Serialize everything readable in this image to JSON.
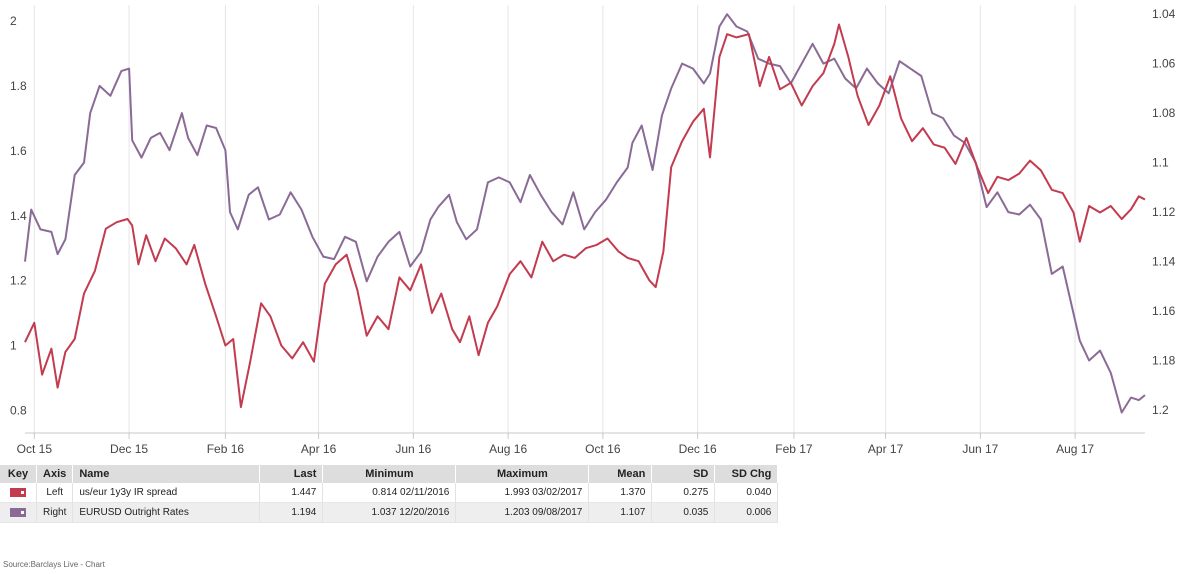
{
  "chart_data": {
    "type": "line",
    "x_tick_labels": [
      "Oct 15",
      "Dec 15",
      "Feb 16",
      "Apr 16",
      "Jun 16",
      "Aug 16",
      "Oct 16",
      "Dec 16",
      "Feb 17",
      "Apr 17",
      "Jun 17",
      "Aug 17"
    ],
    "x_range": [
      "2015-09-25",
      "2017-09-15"
    ],
    "left_axis": {
      "ticks": [
        "0.8",
        "1",
        "1.2",
        "1.4",
        "1.6",
        "1.8",
        "2"
      ],
      "range": [
        0.73,
        2.05
      ]
    },
    "right_axis": {
      "inverted": true,
      "ticks": [
        "1.04",
        "1.06",
        "1.08",
        "1.1",
        "1.12",
        "1.14",
        "1.16",
        "1.18",
        "1.2"
      ],
      "range": [
        1.0363,
        1.2093
      ]
    },
    "grid": {
      "vertical": true,
      "horizontal": false
    },
    "series": [
      {
        "axis": "left",
        "color": "#c23b4f",
        "points": [
          [
            "2015-09-25",
            1.01
          ],
          [
            "2015-10-01",
            1.07
          ],
          [
            "2015-10-06",
            0.91
          ],
          [
            "2015-10-12",
            0.99
          ],
          [
            "2015-10-16",
            0.87
          ],
          [
            "2015-10-21",
            0.98
          ],
          [
            "2015-10-27",
            1.02
          ],
          [
            "2015-11-02",
            1.16
          ],
          [
            "2015-11-09",
            1.23
          ],
          [
            "2015-11-16",
            1.36
          ],
          [
            "2015-11-23",
            1.38
          ],
          [
            "2015-11-30",
            1.39
          ],
          [
            "2015-12-03",
            1.37
          ],
          [
            "2015-12-07",
            1.25
          ],
          [
            "2015-12-12",
            1.34
          ],
          [
            "2015-12-18",
            1.26
          ],
          [
            "2015-12-24",
            1.33
          ],
          [
            "2015-12-31",
            1.3
          ],
          [
            "2016-01-07",
            1.25
          ],
          [
            "2016-01-12",
            1.31
          ],
          [
            "2016-01-19",
            1.19
          ],
          [
            "2016-01-26",
            1.09
          ],
          [
            "2016-02-01",
            1.0
          ],
          [
            "2016-02-06",
            1.02
          ],
          [
            "2016-02-11",
            0.81
          ],
          [
            "2016-02-17",
            0.95
          ],
          [
            "2016-02-24",
            1.13
          ],
          [
            "2016-03-01",
            1.09
          ],
          [
            "2016-03-08",
            1.0
          ],
          [
            "2016-03-15",
            0.96
          ],
          [
            "2016-03-22",
            1.01
          ],
          [
            "2016-03-29",
            0.95
          ],
          [
            "2016-04-05",
            1.19
          ],
          [
            "2016-04-12",
            1.25
          ],
          [
            "2016-04-19",
            1.28
          ],
          [
            "2016-04-26",
            1.17
          ],
          [
            "2016-05-02",
            1.03
          ],
          [
            "2016-05-09",
            1.09
          ],
          [
            "2016-05-16",
            1.05
          ],
          [
            "2016-05-23",
            1.21
          ],
          [
            "2016-05-30",
            1.17
          ],
          [
            "2016-06-06",
            1.25
          ],
          [
            "2016-06-13",
            1.1
          ],
          [
            "2016-06-19",
            1.16
          ],
          [
            "2016-06-26",
            1.05
          ],
          [
            "2016-07-01",
            1.01
          ],
          [
            "2016-07-07",
            1.09
          ],
          [
            "2016-07-13",
            0.97
          ],
          [
            "2016-07-19",
            1.07
          ],
          [
            "2016-07-25",
            1.12
          ],
          [
            "2016-08-02",
            1.22
          ],
          [
            "2016-08-09",
            1.26
          ],
          [
            "2016-08-16",
            1.21
          ],
          [
            "2016-08-23",
            1.32
          ],
          [
            "2016-08-30",
            1.26
          ],
          [
            "2016-09-06",
            1.28
          ],
          [
            "2016-09-13",
            1.27
          ],
          [
            "2016-09-20",
            1.3
          ],
          [
            "2016-09-27",
            1.31
          ],
          [
            "2016-10-04",
            1.33
          ],
          [
            "2016-10-11",
            1.29
          ],
          [
            "2016-10-17",
            1.27
          ],
          [
            "2016-10-24",
            1.26
          ],
          [
            "2016-10-31",
            1.2
          ],
          [
            "2016-11-04",
            1.18
          ],
          [
            "2016-11-09",
            1.29
          ],
          [
            "2016-11-14",
            1.55
          ],
          [
            "2016-11-21",
            1.63
          ],
          [
            "2016-11-28",
            1.69
          ],
          [
            "2016-12-05",
            1.73
          ],
          [
            "2016-12-09",
            1.58
          ],
          [
            "2016-12-15",
            1.89
          ],
          [
            "2016-12-20",
            1.96
          ],
          [
            "2016-12-26",
            1.95
          ],
          [
            "2017-01-03",
            1.96
          ],
          [
            "2017-01-10",
            1.8
          ],
          [
            "2017-01-16",
            1.89
          ],
          [
            "2017-01-23",
            1.79
          ],
          [
            "2017-01-30",
            1.81
          ],
          [
            "2017-02-06",
            1.74
          ],
          [
            "2017-02-13",
            1.8
          ],
          [
            "2017-02-20",
            1.84
          ],
          [
            "2017-02-27",
            1.93
          ],
          [
            "2017-03-02",
            1.99
          ],
          [
            "2017-03-08",
            1.89
          ],
          [
            "2017-03-14",
            1.77
          ],
          [
            "2017-03-21",
            1.68
          ],
          [
            "2017-03-28",
            1.74
          ],
          [
            "2017-04-04",
            1.83
          ],
          [
            "2017-04-11",
            1.7
          ],
          [
            "2017-04-18",
            1.63
          ],
          [
            "2017-04-25",
            1.67
          ],
          [
            "2017-05-02",
            1.62
          ],
          [
            "2017-05-09",
            1.61
          ],
          [
            "2017-05-16",
            1.56
          ],
          [
            "2017-05-23",
            1.64
          ],
          [
            "2017-05-30",
            1.55
          ],
          [
            "2017-06-06",
            1.47
          ],
          [
            "2017-06-12",
            1.52
          ],
          [
            "2017-06-19",
            1.51
          ],
          [
            "2017-06-26",
            1.53
          ],
          [
            "2017-07-03",
            1.57
          ],
          [
            "2017-07-10",
            1.54
          ],
          [
            "2017-07-17",
            1.48
          ],
          [
            "2017-07-24",
            1.47
          ],
          [
            "2017-07-31",
            1.41
          ],
          [
            "2017-08-04",
            1.32
          ],
          [
            "2017-08-10",
            1.43
          ],
          [
            "2017-08-17",
            1.41
          ],
          [
            "2017-08-24",
            1.43
          ],
          [
            "2017-08-31",
            1.39
          ],
          [
            "2017-09-06",
            1.42
          ],
          [
            "2017-09-11",
            1.46
          ],
          [
            "2017-09-15",
            1.45
          ]
        ]
      },
      {
        "axis": "right",
        "color": "#8a6b96",
        "points": [
          [
            "2015-09-25",
            1.14
          ],
          [
            "2015-09-29",
            1.119
          ],
          [
            "2015-10-05",
            1.127
          ],
          [
            "2015-10-12",
            1.128
          ],
          [
            "2015-10-16",
            1.137
          ],
          [
            "2015-10-21",
            1.131
          ],
          [
            "2015-10-27",
            1.105
          ],
          [
            "2015-11-02",
            1.1
          ],
          [
            "2015-11-06",
            1.08
          ],
          [
            "2015-11-12",
            1.069
          ],
          [
            "2015-11-19",
            1.073
          ],
          [
            "2015-11-26",
            1.063
          ],
          [
            "2015-12-01",
            1.062
          ],
          [
            "2015-12-03",
            1.091
          ],
          [
            "2015-12-09",
            1.098
          ],
          [
            "2015-12-15",
            1.09
          ],
          [
            "2015-12-21",
            1.088
          ],
          [
            "2015-12-27",
            1.095
          ],
          [
            "2016-01-04",
            1.08
          ],
          [
            "2016-01-08",
            1.09
          ],
          [
            "2016-01-14",
            1.097
          ],
          [
            "2016-01-20",
            1.085
          ],
          [
            "2016-01-26",
            1.086
          ],
          [
            "2016-02-01",
            1.095
          ],
          [
            "2016-02-04",
            1.12
          ],
          [
            "2016-02-09",
            1.127
          ],
          [
            "2016-02-16",
            1.113
          ],
          [
            "2016-02-22",
            1.11
          ],
          [
            "2016-02-29",
            1.123
          ],
          [
            "2016-03-07",
            1.121
          ],
          [
            "2016-03-14",
            1.112
          ],
          [
            "2016-03-21",
            1.119
          ],
          [
            "2016-03-28",
            1.13
          ],
          [
            "2016-04-04",
            1.138
          ],
          [
            "2016-04-11",
            1.139
          ],
          [
            "2016-04-18",
            1.13
          ],
          [
            "2016-04-25",
            1.132
          ],
          [
            "2016-05-02",
            1.148
          ],
          [
            "2016-05-09",
            1.138
          ],
          [
            "2016-05-16",
            1.132
          ],
          [
            "2016-05-23",
            1.128
          ],
          [
            "2016-05-30",
            1.142
          ],
          [
            "2016-06-06",
            1.136
          ],
          [
            "2016-06-12",
            1.123
          ],
          [
            "2016-06-17",
            1.118
          ],
          [
            "2016-06-24",
            1.113
          ],
          [
            "2016-06-29",
            1.124
          ],
          [
            "2016-07-05",
            1.131
          ],
          [
            "2016-07-12",
            1.127
          ],
          [
            "2016-07-19",
            1.108
          ],
          [
            "2016-07-26",
            1.106
          ],
          [
            "2016-08-02",
            1.108
          ],
          [
            "2016-08-09",
            1.116
          ],
          [
            "2016-08-15",
            1.105
          ],
          [
            "2016-08-22",
            1.113
          ],
          [
            "2016-08-29",
            1.12
          ],
          [
            "2016-09-05",
            1.125
          ],
          [
            "2016-09-12",
            1.112
          ],
          [
            "2016-09-19",
            1.127
          ],
          [
            "2016-09-26",
            1.12
          ],
          [
            "2016-10-03",
            1.115
          ],
          [
            "2016-10-10",
            1.108
          ],
          [
            "2016-10-17",
            1.102
          ],
          [
            "2016-10-20",
            1.092
          ],
          [
            "2016-10-26",
            1.085
          ],
          [
            "2016-11-02",
            1.103
          ],
          [
            "2016-11-08",
            1.081
          ],
          [
            "2016-11-14",
            1.07
          ],
          [
            "2016-11-21",
            1.06
          ],
          [
            "2016-11-28",
            1.062
          ],
          [
            "2016-12-05",
            1.068
          ],
          [
            "2016-12-09",
            1.064
          ],
          [
            "2016-12-15",
            1.045
          ],
          [
            "2016-12-20",
            1.04
          ],
          [
            "2016-12-26",
            1.045
          ],
          [
            "2017-01-02",
            1.047
          ],
          [
            "2017-01-09",
            1.058
          ],
          [
            "2017-01-16",
            1.06
          ],
          [
            "2017-01-23",
            1.061
          ],
          [
            "2017-01-30",
            1.068
          ],
          [
            "2017-02-06",
            1.06
          ],
          [
            "2017-02-13",
            1.052
          ],
          [
            "2017-02-20",
            1.06
          ],
          [
            "2017-02-27",
            1.058
          ],
          [
            "2017-03-06",
            1.066
          ],
          [
            "2017-03-13",
            1.07
          ],
          [
            "2017-03-20",
            1.062
          ],
          [
            "2017-03-27",
            1.068
          ],
          [
            "2017-04-03",
            1.072
          ],
          [
            "2017-04-10",
            1.059
          ],
          [
            "2017-04-17",
            1.062
          ],
          [
            "2017-04-24",
            1.065
          ],
          [
            "2017-05-01",
            1.08
          ],
          [
            "2017-05-08",
            1.082
          ],
          [
            "2017-05-15",
            1.089
          ],
          [
            "2017-05-22",
            1.092
          ],
          [
            "2017-05-29",
            1.1
          ],
          [
            "2017-06-05",
            1.118
          ],
          [
            "2017-06-12",
            1.112
          ],
          [
            "2017-06-19",
            1.12
          ],
          [
            "2017-06-26",
            1.121
          ],
          [
            "2017-07-03",
            1.117
          ],
          [
            "2017-07-10",
            1.123
          ],
          [
            "2017-07-17",
            1.145
          ],
          [
            "2017-07-24",
            1.142
          ],
          [
            "2017-07-31",
            1.161
          ],
          [
            "2017-08-04",
            1.172
          ],
          [
            "2017-08-10",
            1.18
          ],
          [
            "2017-08-17",
            1.176
          ],
          [
            "2017-08-24",
            1.185
          ],
          [
            "2017-08-31",
            1.201
          ],
          [
            "2017-09-06",
            1.195
          ],
          [
            "2017-09-11",
            1.196
          ],
          [
            "2017-09-15",
            1.194
          ]
        ]
      }
    ]
  },
  "table": {
    "headers": {
      "key": "Key",
      "axis": "Axis",
      "name": "Name",
      "last": "Last",
      "minimum": "Minimum",
      "maximum": "Maximum",
      "mean": "Mean",
      "sd": "SD",
      "sdchg": "SD Chg"
    },
    "rows": [
      {
        "color": "#c23b4f",
        "axis": "Left",
        "name": "us/eur 1y3y IR spread",
        "last": "1.447",
        "minimum": "0.814 02/11/2016",
        "maximum": "1.993 03/02/2017",
        "mean": "1.370",
        "sd": "0.275",
        "sdchg": "0.040"
      },
      {
        "color": "#8a6b96",
        "axis": "Right",
        "name": "EURUSD Outright Rates",
        "last": "1.194",
        "minimum": "1.037 12/20/2016",
        "maximum": "1.203 09/08/2017",
        "mean": "1.107",
        "sd": "0.035",
        "sdchg": "0.006"
      }
    ]
  },
  "source": "Source:Barclays Live - Chart"
}
